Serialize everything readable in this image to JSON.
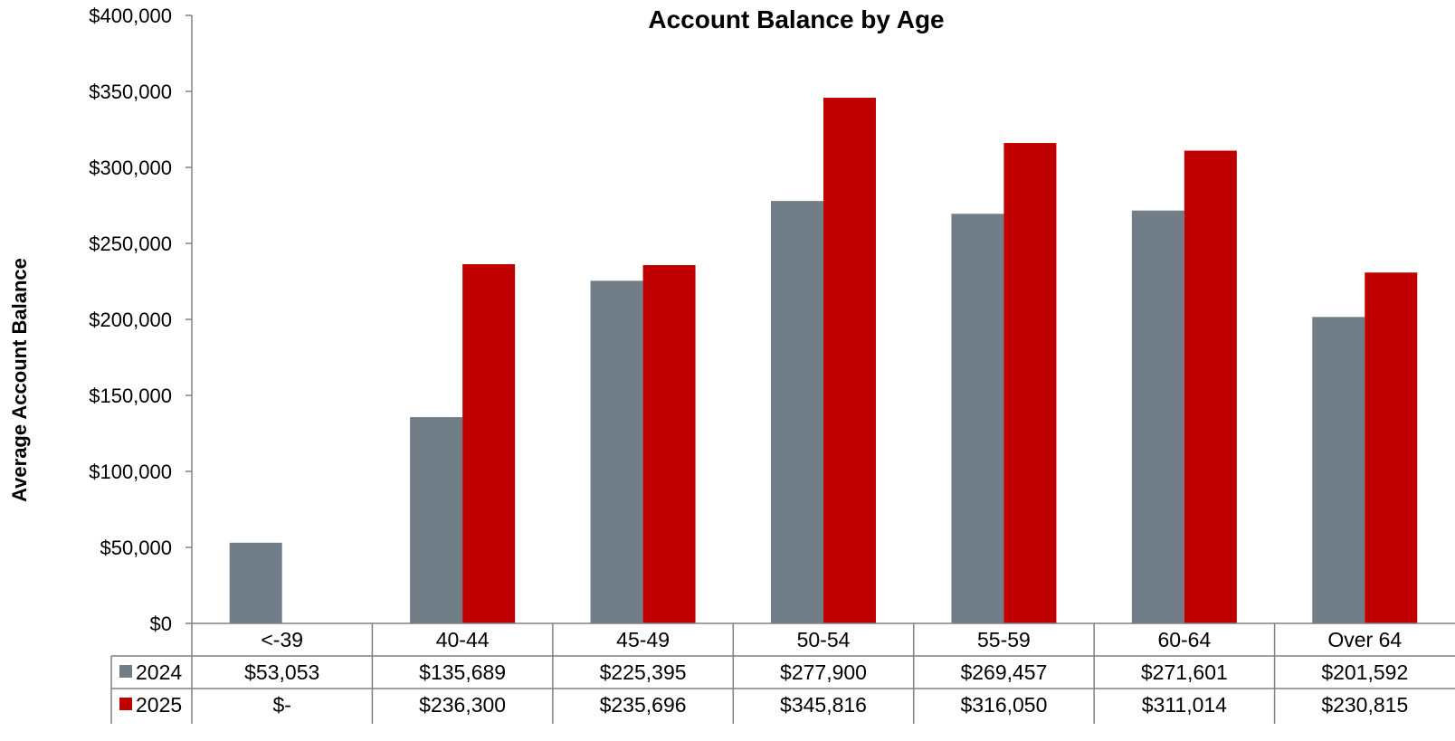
{
  "chart_data": {
    "type": "bar",
    "title": "Account Balance by Age",
    "ylabel": "Average Account Balance",
    "xlabel": "",
    "ylim": [
      0,
      400000
    ],
    "y_ticks": [
      0,
      50000,
      100000,
      150000,
      200000,
      250000,
      300000,
      350000,
      400000
    ],
    "y_tick_labels": [
      "$0",
      "$50,000",
      "$100,000",
      "$150,000",
      "$200,000",
      "$250,000",
      "$300,000",
      "$350,000",
      "$400,000"
    ],
    "categories": [
      "<-39",
      "40-44",
      "45-49",
      "50-54",
      "55-59",
      "60-64",
      "Over 64"
    ],
    "series": [
      {
        "name": "2024",
        "color": "#717d87",
        "values": [
          53053,
          135689,
          225395,
          277900,
          269457,
          271601,
          201592
        ],
        "labels": [
          "$53,053",
          "$135,689",
          "$225,395",
          "$277,900",
          "$269,457",
          "$271,601",
          "$201,592"
        ]
      },
      {
        "name": "2025",
        "color": "#c00000",
        "values": [
          0,
          236300,
          235696,
          345816,
          316050,
          311014,
          230815
        ],
        "labels": [
          "$-",
          "$236,300",
          "$235,696",
          "$345,816",
          "$316,050",
          "$311,014",
          "$230,815"
        ]
      }
    ],
    "grid": false,
    "legend": "data-table"
  }
}
